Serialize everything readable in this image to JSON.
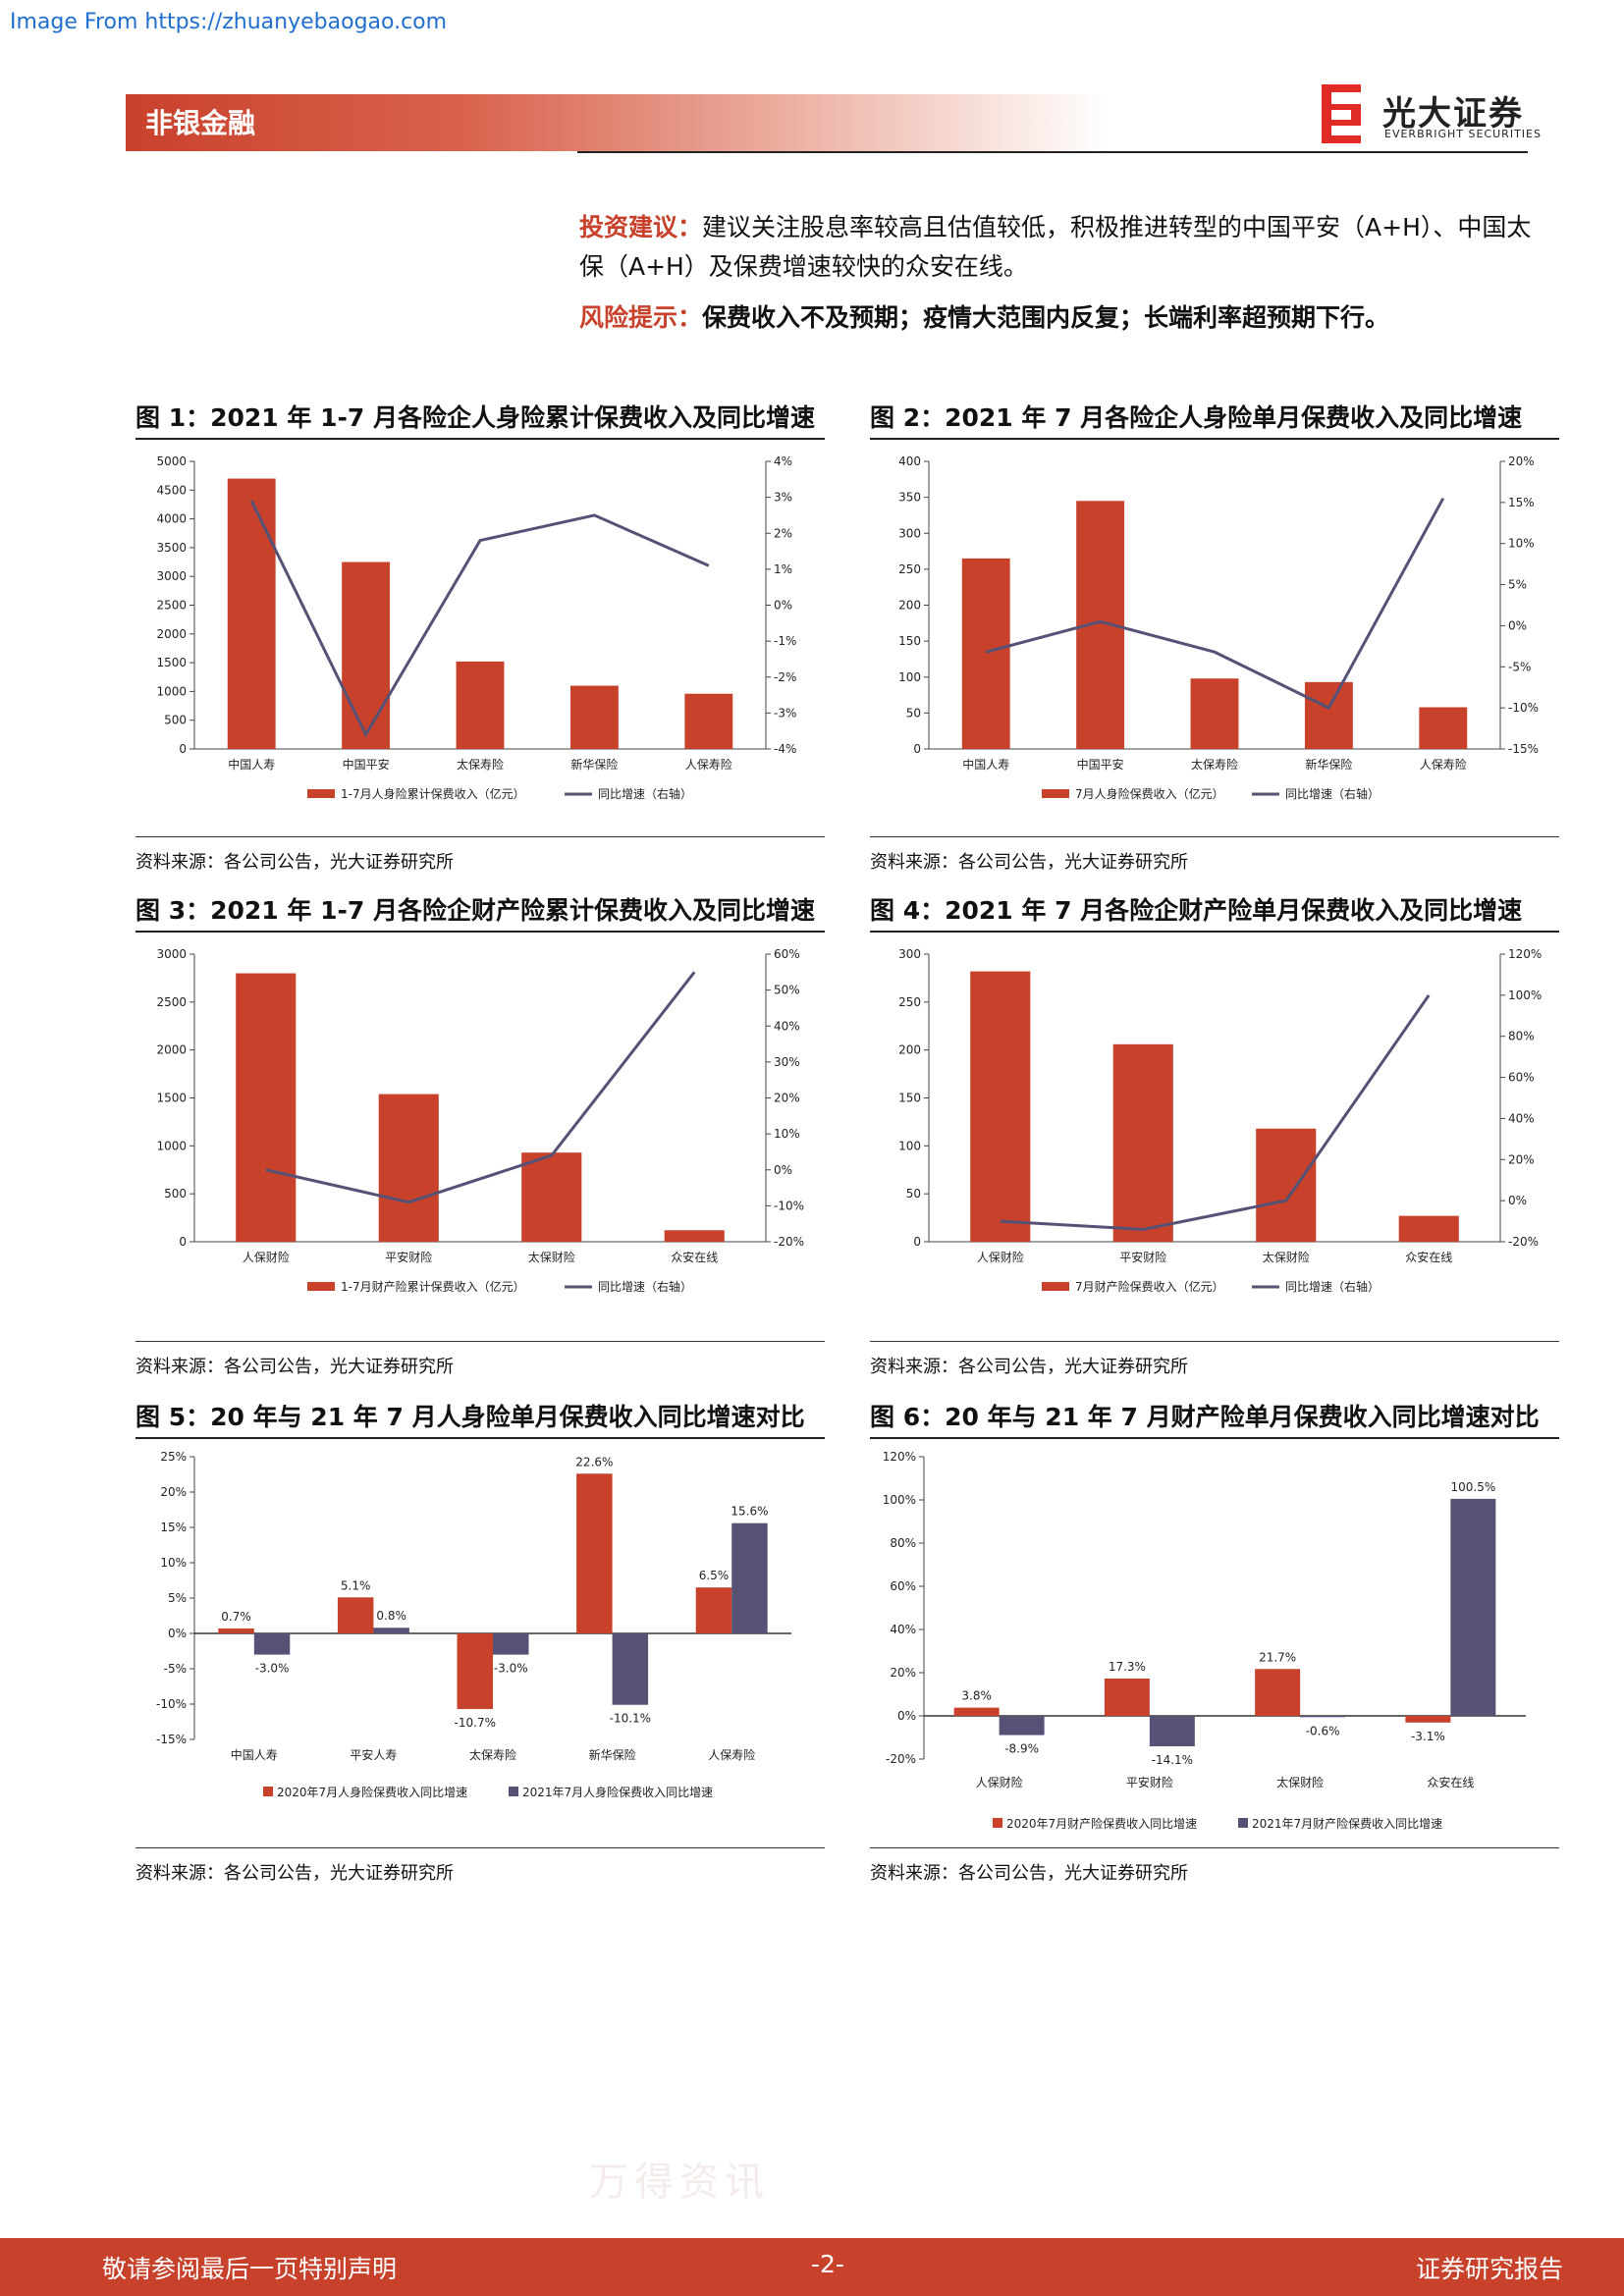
{
  "page": {
    "source_link": "Image From https://zhuanyebaogao.com",
    "section": "非银金融",
    "logo_cn": "光大证券",
    "logo_en": "EVERBRIGHT SECURITIES",
    "invest_label": "投资建议：",
    "invest_text": "建议关注股息率较高且估值较低，积极推进转型的中国平安（A+H）、中国太保（A+H）及保费增速较快的众安在线。",
    "risk_label": "风险提示：",
    "risk_text": "保费收入不及预期；疫情大范围内反复；长端利率超预期下行。",
    "watermark": "万得资讯",
    "footer_left": "敬请参阅最后一页特别声明",
    "footer_center": "-2-",
    "footer_right": "证券研究报告",
    "colors": {
      "accent": "#c8412b",
      "series2": "#555275"
    }
  },
  "figures": [
    {
      "title": "图 1：2021 年 1-7 月各险企人身险累计保费收入及同比增速",
      "source": "资料来源：各公司公告，光大证券研究所"
    },
    {
      "title": "图 2：2021 年 7 月各险企人身险单月保费收入及同比增速",
      "source": "资料来源：各公司公告，光大证券研究所"
    },
    {
      "title": "图 3：2021 年 1-7 月各险企财产险累计保费收入及同比增速",
      "source": "资料来源：各公司公告，光大证券研究所"
    },
    {
      "title": "图 4：2021 年 7 月各险企财产险单月保费收入及同比增速",
      "source": "资料来源：各公司公告，光大证券研究所"
    },
    {
      "title": "图 5：20 年与 21 年 7 月人身险单月保费收入同比增速对比",
      "source": "资料来源：各公司公告，光大证券研究所"
    },
    {
      "title": "图 6：20 年与 21 年 7 月财产险单月保费收入同比增速对比",
      "source": "资料来源：各公司公告，光大证券研究所"
    }
  ],
  "chart_data": [
    {
      "type": "bar+line",
      "categories": [
        "中国人寿",
        "中国平安",
        "太保寿险",
        "新华保险",
        "人保寿险"
      ],
      "series": [
        {
          "name": "1-7月人身险累计保费收入（亿元）",
          "kind": "bar",
          "axis": "left",
          "values": [
            4700,
            3250,
            1520,
            1100,
            960
          ]
        },
        {
          "name": "同比增速（右轴）",
          "kind": "line",
          "axis": "right",
          "values": [
            2.9,
            -3.6,
            1.8,
            2.5,
            1.1
          ]
        }
      ],
      "y_left": {
        "min": 0,
        "max": 5000,
        "step": 500,
        "ticks": [
          "0",
          "500",
          "1000",
          "1500",
          "2000",
          "2500",
          "3000",
          "3500",
          "4000",
          "4500",
          "5000"
        ]
      },
      "y_right": {
        "min": -4,
        "max": 4,
        "step": 1,
        "ticks": [
          "-4%",
          "-3%",
          "-2%",
          "-1%",
          "0%",
          "1%",
          "2%",
          "3%",
          "4%"
        ]
      }
    },
    {
      "type": "bar+line",
      "categories": [
        "中国人寿",
        "中国平安",
        "太保寿险",
        "新华保险",
        "人保寿险"
      ],
      "series": [
        {
          "name": "7月人身险保费收入（亿元）",
          "kind": "bar",
          "axis": "left",
          "values": [
            265,
            345,
            98,
            93,
            58
          ]
        },
        {
          "name": "同比增速（右轴）",
          "kind": "line",
          "axis": "right",
          "values": [
            -3.2,
            0.5,
            -3.2,
            -10.0,
            15.5
          ]
        }
      ],
      "y_left": {
        "min": 0,
        "max": 400,
        "step": 50,
        "ticks": [
          "0",
          "50",
          "100",
          "150",
          "200",
          "250",
          "300",
          "350",
          "400"
        ]
      },
      "y_right": {
        "min": -15,
        "max": 20,
        "step": 5,
        "ticks": [
          "-15%",
          "-10%",
          "-5%",
          "0%",
          "5%",
          "10%",
          "15%",
          "20%"
        ]
      }
    },
    {
      "type": "bar+line",
      "categories": [
        "人保财险",
        "平安财险",
        "太保财险",
        "众安在线"
      ],
      "series": [
        {
          "name": "1-7月财产险累计保费收入（亿元）",
          "kind": "bar",
          "axis": "left",
          "values": [
            2800,
            1540,
            930,
            120
          ]
        },
        {
          "name": "同比增速（右轴）",
          "kind": "line",
          "axis": "right",
          "values": [
            0,
            -9,
            4,
            55
          ]
        }
      ],
      "y_left": {
        "min": 0,
        "max": 3000,
        "step": 500,
        "ticks": [
          "0",
          "500",
          "1000",
          "1500",
          "2000",
          "2500",
          "3000"
        ]
      },
      "y_right": {
        "min": -20,
        "max": 60,
        "step": 10,
        "ticks": [
          "-20%",
          "-10%",
          "0%",
          "10%",
          "20%",
          "30%",
          "40%",
          "50%",
          "60%"
        ]
      }
    },
    {
      "type": "bar+line",
      "categories": [
        "人保财险",
        "平安财险",
        "太保财险",
        "众安在线"
      ],
      "series": [
        {
          "name": "7月财产险保费收入（亿元）",
          "kind": "bar",
          "axis": "left",
          "values": [
            282,
            206,
            118,
            27
          ]
        },
        {
          "name": "同比增速（右轴）",
          "kind": "line",
          "axis": "right",
          "values": [
            -10,
            -14,
            0,
            100
          ]
        }
      ],
      "y_left": {
        "min": 0,
        "max": 300,
        "step": 50,
        "ticks": [
          "0",
          "50",
          "100",
          "150",
          "200",
          "250",
          "300"
        ]
      },
      "y_right": {
        "min": -20,
        "max": 120,
        "step": 20,
        "ticks": [
          "-20%",
          "0%",
          "20%",
          "40%",
          "60%",
          "80%",
          "100%",
          "120%"
        ]
      }
    },
    {
      "type": "bar",
      "categories": [
        "中国人寿",
        "平安人寿",
        "太保寿险",
        "新华保险",
        "人保寿险"
      ],
      "series": [
        {
          "name": "2020年7月人身险保费收入同比增速",
          "values": [
            0.7,
            5.1,
            -10.7,
            22.6,
            6.5
          ],
          "labels": [
            "0.7%",
            "5.1%",
            "-10.7%",
            "22.6%",
            "6.5%"
          ]
        },
        {
          "name": "2021年7月人身险保费收入同比增速",
          "values": [
            -3.0,
            0.8,
            -3.0,
            -10.1,
            15.6
          ],
          "labels": [
            "-3.0%",
            "0.8%",
            "-3.0%",
            "-10.1%",
            "15.6%"
          ]
        }
      ],
      "y": {
        "min": -15,
        "max": 25,
        "step": 5,
        "ticks": [
          "-15%",
          "-10%",
          "-5%",
          "0%",
          "5%",
          "10%",
          "15%",
          "20%",
          "25%"
        ]
      }
    },
    {
      "type": "bar",
      "categories": [
        "人保财险",
        "平安财险",
        "太保财险",
        "众安在线"
      ],
      "series": [
        {
          "name": "2020年7月财产险保费收入同比增速",
          "values": [
            3.8,
            17.3,
            21.7,
            -3.1
          ],
          "labels": [
            "3.8%",
            "17.3%",
            "21.7%",
            "-3.1%"
          ]
        },
        {
          "name": "2021年7月财产险保费收入同比增速",
          "values": [
            -8.9,
            -14.1,
            -0.6,
            100.5
          ],
          "labels": [
            "-8.9%",
            "-14.1%",
            "-0.6%",
            "100.5%"
          ]
        }
      ],
      "y": {
        "min": -20,
        "max": 120,
        "step": 20,
        "ticks": [
          "-20%",
          "0%",
          "20%",
          "40%",
          "60%",
          "80%",
          "100%",
          "120%"
        ]
      }
    }
  ]
}
